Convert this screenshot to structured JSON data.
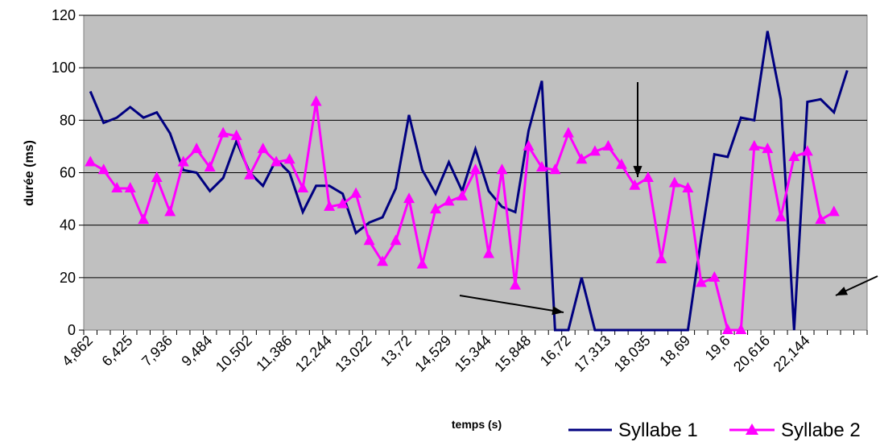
{
  "chart_data": {
    "type": "line",
    "title": "",
    "xlabel": "temps (s)",
    "ylabel": "durée (ms)",
    "ylim": [
      0,
      120
    ],
    "yticks": [
      "0",
      "20",
      "40",
      "60",
      "80",
      "100",
      "120"
    ],
    "grid": true,
    "legend_position": "bottom-right",
    "plot_background": "#c0c0c0",
    "x_tick_labels": [
      "4,862",
      "6,425",
      "7,936",
      "9,484",
      "10,502",
      "11,386",
      "12,244",
      "13,022",
      "13,72",
      "14,529",
      "15,344",
      "15,848",
      "16,72",
      "17,313",
      "18,035",
      "18,69",
      "19,6",
      "20,616",
      "22,144"
    ],
    "series": [
      {
        "name": "Syllabe 1",
        "color": "#000080",
        "marker": "none",
        "values": [
          91,
          79,
          81,
          85,
          81,
          83,
          75,
          61,
          60,
          53,
          58,
          72,
          60,
          55,
          65,
          60,
          45,
          55,
          55,
          52,
          37,
          41,
          43,
          54,
          82,
          61,
          52,
          64,
          53,
          69,
          53,
          47,
          45,
          76,
          95,
          0,
          0,
          20,
          0,
          0,
          0,
          0,
          0,
          0,
          0,
          0,
          35,
          67,
          66,
          81,
          80,
          114,
          88,
          0,
          87,
          88,
          83,
          99
        ]
      },
      {
        "name": "Syllabe 2",
        "color": "#ff00ff",
        "marker": "triangle",
        "values": [
          64,
          61,
          54,
          54,
          42,
          58,
          45,
          64,
          69,
          62,
          75,
          74,
          59,
          69,
          64,
          65,
          54,
          87,
          47,
          48,
          52,
          34,
          26,
          34,
          50,
          25,
          46,
          49,
          51,
          61,
          29,
          61,
          17,
          70,
          62,
          61,
          75,
          65,
          68,
          70,
          63,
          55,
          58,
          27,
          56,
          54,
          18,
          20,
          0,
          0,
          70,
          69,
          43,
          66,
          68,
          42,
          45
        ]
      }
    ]
  }
}
